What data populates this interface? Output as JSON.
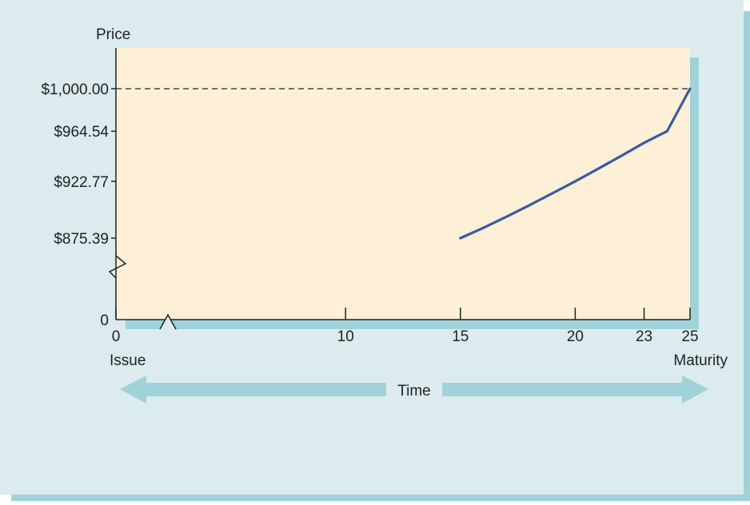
{
  "colors": {
    "panel": "#dcebed",
    "panel_shadow": "#9fd3d9",
    "plot_bg": "#fdf0d7",
    "axis": "#222222",
    "line": "#3a5aa8",
    "arrow": "#9fd3d9"
  },
  "chart_data": {
    "type": "line",
    "title": "",
    "ylabel": "Price",
    "x_ticks": [
      "0",
      "10",
      "15",
      "20",
      "23",
      "25"
    ],
    "x_tick_values": [
      0,
      10,
      15,
      20,
      23,
      25
    ],
    "y_ticks": [
      "$1,000.00",
      "$964.54",
      "$922.77",
      "$875.39",
      "0"
    ],
    "y_tick_values": [
      1000.0,
      964.54,
      922.77,
      875.39,
      0
    ],
    "x_axis_break": "between 0 and 10",
    "y_axis_break": "between 0 and $875.39",
    "xlim": [
      0,
      25
    ],
    "reference_line": {
      "label": "$1,000.00",
      "value": 1000.0,
      "style": "dashed"
    },
    "series": [
      {
        "x": [
          15,
          16,
          17,
          18,
          19,
          20,
          21,
          22,
          23,
          24,
          25
        ],
        "y": [
          875.39,
          883.9,
          893.2,
          902.8,
          912.7,
          922.77,
          933.2,
          943.9,
          954.9,
          964.54,
          1000.0
        ]
      }
    ],
    "x_start_label": "Issue",
    "x_end_label": "Maturity",
    "time_label": "Time"
  }
}
